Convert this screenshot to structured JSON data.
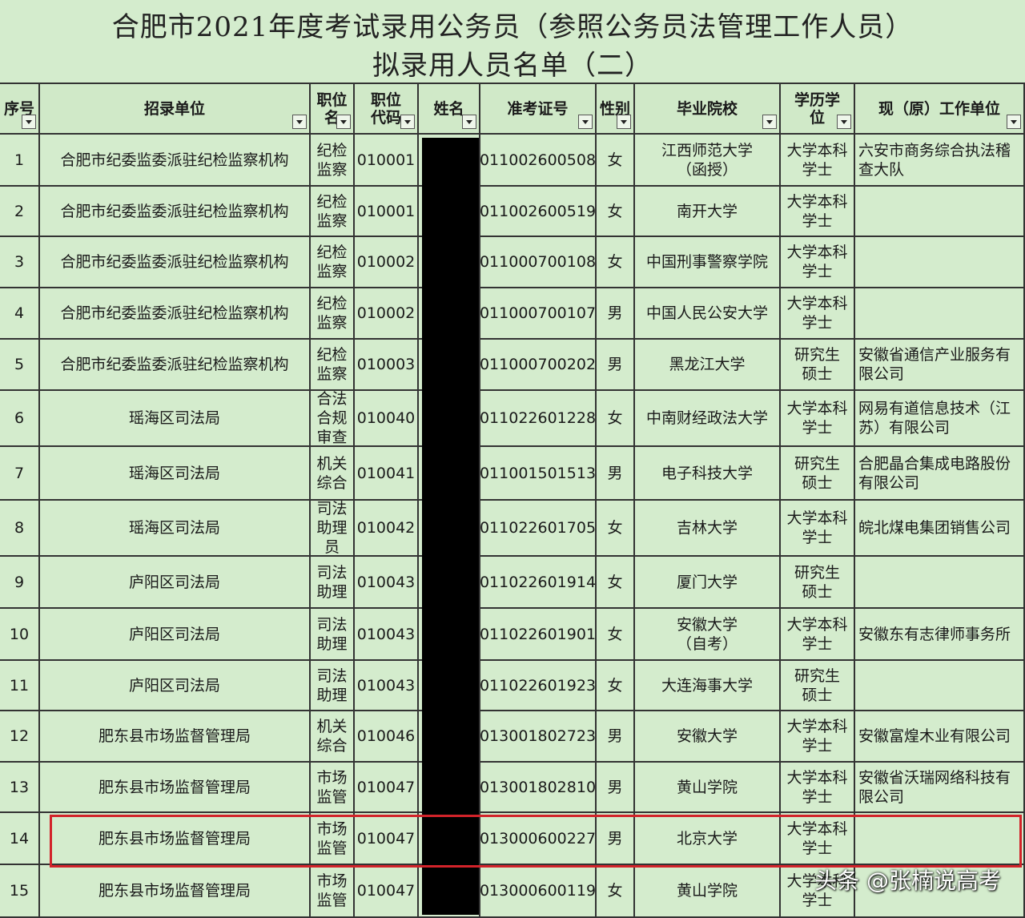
{
  "header": {
    "title_line1": "合肥市2021年度考试录用公务员（参照公务员法管理工作人员）",
    "title_line2": "拟录用人员名单（二）"
  },
  "table": {
    "headers": [
      "序号",
      "招录单位",
      "职位\n名",
      "职位\n代码",
      "姓名",
      "准考证号",
      "性别",
      "毕业院校",
      "学历学\n位",
      "现（原）工作单位"
    ],
    "rows": [
      {
        "no": 1,
        "unit": "合肥市纪委监委派驻纪检监察机构",
        "post": "纪检\n监察",
        "code": "010001",
        "exam_no": "011002600508",
        "gender": "女",
        "school": "江西师范大学\n（函授）",
        "degree": "大学本科\n学士",
        "employer": "六安市商务综合执法稽\n查大队"
      },
      {
        "no": 2,
        "unit": "合肥市纪委监委派驻纪检监察机构",
        "post": "纪检\n监察",
        "code": "010001",
        "exam_no": "011002600519",
        "gender": "女",
        "school": "南开大学",
        "degree": "大学本科\n学士"
      },
      {
        "no": 3,
        "unit": "合肥市纪委监委派驻纪检监察机构",
        "post": "纪检\n监察",
        "code": "010002",
        "exam_no": "011000700108",
        "gender": "女",
        "school": "中国刑事警察学院",
        "degree": "大学本科\n学士"
      },
      {
        "no": 4,
        "unit": "合肥市纪委监委派驻纪检监察机构",
        "post": "纪检\n监察",
        "code": "010002",
        "exam_no": "011000700107",
        "gender": "男",
        "school": "中国人民公安大学",
        "degree": "大学本科\n学士"
      },
      {
        "no": 5,
        "unit": "合肥市纪委监委派驻纪检监察机构",
        "post": "纪检\n监察",
        "code": "010003",
        "exam_no": "011000700202",
        "gender": "男",
        "school": "黑龙江大学",
        "degree": "研究生\n硕士",
        "employer": "安徽省通信产业服务有\n限公司"
      },
      {
        "no": 6,
        "unit": "瑶海区司法局",
        "post": "合法\n合规\n审查",
        "code": "010040",
        "exam_no": "011022601228",
        "gender": "女",
        "school": "中南财经政法大学",
        "degree": "大学本科\n学士",
        "employer": "网易有道信息技术（江\n苏）有限公司"
      },
      {
        "no": 7,
        "unit": "瑶海区司法局",
        "post": "机关\n综合",
        "code": "010041",
        "exam_no": "011001501513",
        "gender": "男",
        "school": "电子科技大学",
        "degree": "研究生\n硕士",
        "employer": "合肥晶合集成电路股份\n有限公司"
      },
      {
        "no": 8,
        "unit": "瑶海区司法局",
        "post": "司法\n助理\n员",
        "code": "010042",
        "exam_no": "011022601705",
        "gender": "女",
        "school": "吉林大学",
        "degree": "大学本科\n学士",
        "employer": "皖北煤电集团销售公司"
      },
      {
        "no": 9,
        "unit": "庐阳区司法局",
        "post": "司法\n助理",
        "code": "010043",
        "exam_no": "011022601914",
        "gender": "女",
        "school": "厦门大学",
        "degree": "研究生\n硕士"
      },
      {
        "no": 10,
        "unit": "庐阳区司法局",
        "post": "司法\n助理",
        "code": "010043",
        "exam_no": "011022601901",
        "gender": "女",
        "school": "安徽大学\n（自考）",
        "degree": "大学本科\n学士",
        "employer": "安徽东有志律师事务所"
      },
      {
        "no": 11,
        "unit": "庐阳区司法局",
        "post": "司法\n助理",
        "code": "010043",
        "exam_no": "011022601923",
        "gender": "女",
        "school": "大连海事大学",
        "degree": "研究生\n硕士"
      },
      {
        "no": 12,
        "unit": "肥东县市场监督管理局",
        "post": "机关\n综合",
        "code": "010046",
        "exam_no": "013001802723",
        "gender": "男",
        "school": "安徽大学",
        "degree": "大学本科\n学士",
        "employer": "安徽富煌木业有限公司"
      },
      {
        "no": 13,
        "unit": "肥东县市场监督管理局",
        "post": "市场\n监管",
        "code": "010047",
        "exam_no": "013001802810",
        "gender": "男",
        "school": "黄山学院",
        "degree": "大学本科\n学士",
        "employer": "安徽省沃瑞网络科技有\n限公司"
      },
      {
        "no": 14,
        "unit": "肥东县市场监督管理局",
        "post": "市场\n监管",
        "code": "010047",
        "exam_no": "013000600227",
        "gender": "男",
        "school": "北京大学",
        "degree": "大学本科\n学士"
      },
      {
        "no": 15,
        "unit": "肥东县市场监督管理局",
        "post": "市场\n监管",
        "code": "010047",
        "exam_no": "013000600119",
        "gender": "女",
        "school": "黄山学院",
        "degree": "大学本科\n学士"
      }
    ]
  },
  "watermark": "头条 @张楠说高考"
}
